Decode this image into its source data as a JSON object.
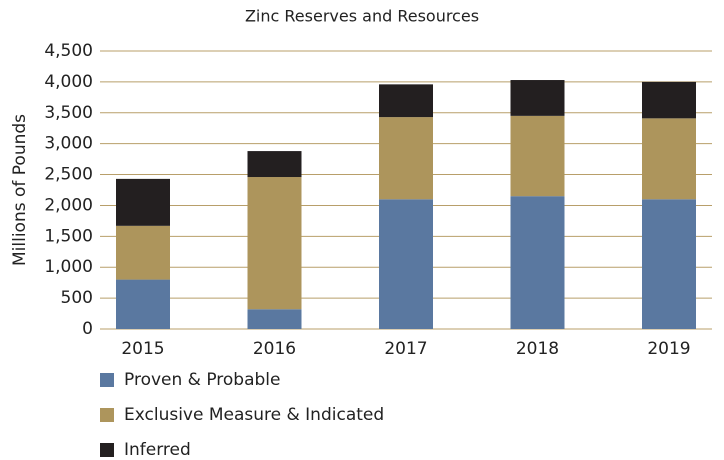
{
  "chart_data": {
    "type": "stacked_bar",
    "title": "Zinc Reserves and Resources",
    "y_label": "Millions of Pounds",
    "categories": [
      "2015",
      "2016",
      "2017",
      "2018",
      "2019"
    ],
    "series": [
      {
        "name": "Proven & Probable",
        "color": "#5a78a0",
        "values": [
          800,
          320,
          2100,
          2150,
          2100
        ]
      },
      {
        "name": "Exclusive Measure & Indicated",
        "color": "#ad955c",
        "values": [
          870,
          2140,
          1330,
          1300,
          1310
        ]
      },
      {
        "name": "Inferred",
        "color": "#231f20",
        "values": [
          760,
          420,
          530,
          580,
          590
        ]
      }
    ],
    "ylim": [
      0,
      4500
    ],
    "yticks": [
      0,
      500,
      {
        "value": 1000,
        "label": "1,000"
      },
      {
        "value": 1500,
        "label": "1,500"
      },
      {
        "value": 2000,
        "label": "2,000"
      },
      {
        "value": 2500,
        "label": "2,500"
      },
      {
        "value": 3000,
        "label": "3,000"
      },
      {
        "value": 3500,
        "label": "3,500"
      },
      {
        "value": 4000,
        "label": "4,000"
      },
      {
        "value": 4500,
        "label": "4,500"
      }
    ],
    "grid": true
  }
}
